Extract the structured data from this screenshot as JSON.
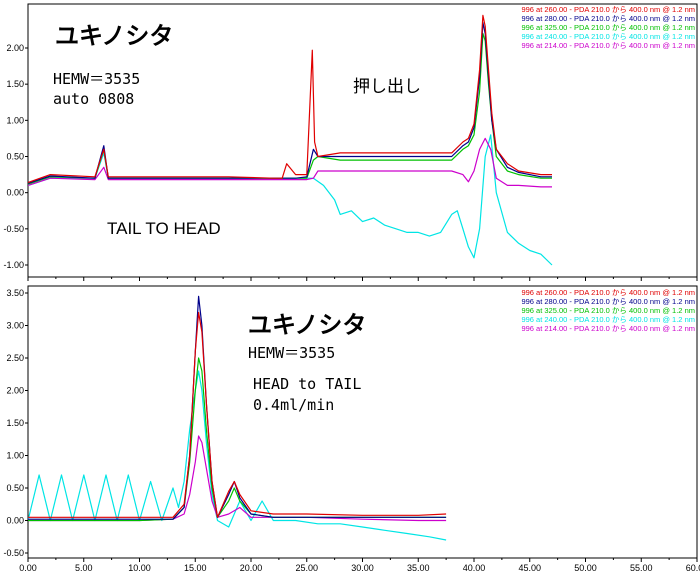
{
  "chart_data": [
    {
      "type": "line",
      "title": "ユキノシタ",
      "annotations": [
        "HEMW＝3535",
        "auto 0808",
        "押し出し",
        "TAIL TO HEAD"
      ],
      "y_ticks": [
        "2.00",
        "1.50",
        "1.00",
        "0.50",
        "0.00",
        "-0.50",
        "-1.00"
      ],
      "ylim": [
        -1.0,
        2.35
      ],
      "xlim": [
        0,
        60
      ],
      "legend": [
        {
          "text": "996  at 260.00 - PDA 210.0 から 400.0 nm @ 1.2 nm",
          "color": "#e00000"
        },
        {
          "text": "996  at 280.00 - PDA 210.0 から 400.0 nm @ 1.2 nm",
          "color": "#00008b"
        },
        {
          "text": "996  at 325.00 - PDA 210.0 から 400.0 nm @ 1.2 nm",
          "color": "#00c000"
        },
        {
          "text": "996  at 240.00 - PDA 210.0 から 400.0 nm @ 1.2 nm",
          "color": "#00e5e5"
        },
        {
          "text": "996  at 214.00 - PDA 210.0 から 400.0 nm @ 1.2 nm",
          "color": "#cc00cc"
        }
      ],
      "legend_position": "top-right",
      "grid": false,
      "series": [
        {
          "color": "#00e5e5",
          "x": [
            0,
            2,
            4,
            6,
            6.8,
            7.2,
            10,
            14,
            18,
            22,
            24,
            25,
            25.6,
            26.5,
            27.5,
            28,
            29,
            30,
            31,
            32,
            33,
            34,
            35,
            36,
            37,
            38,
            38.5,
            39,
            39.5,
            40,
            40.5,
            41,
            41.5,
            42,
            43,
            44,
            45,
            46,
            47
          ],
          "y": [
            0.1,
            0.2,
            0.2,
            0.2,
            0.55,
            0.2,
            0.2,
            0.2,
            0.2,
            0.2,
            0.2,
            0.2,
            0.2,
            0.1,
            -0.1,
            -0.3,
            -0.25,
            -0.4,
            -0.35,
            -0.45,
            -0.5,
            -0.55,
            -0.55,
            -0.6,
            -0.55,
            -0.3,
            -0.25,
            -0.5,
            -0.75,
            -0.9,
            -0.5,
            0.5,
            0.8,
            0.0,
            -0.55,
            -0.7,
            -0.8,
            -0.85,
            -1.0
          ]
        },
        {
          "color": "#cc00cc",
          "x": [
            0,
            2,
            6,
            6.8,
            7.2,
            12,
            18,
            22,
            24,
            25,
            25.6,
            26,
            28,
            30,
            32,
            34,
            36,
            38,
            39,
            39.5,
            40,
            40.5,
            41,
            41.5,
            42,
            43,
            44,
            46,
            47
          ],
          "y": [
            0.1,
            0.2,
            0.18,
            0.35,
            0.18,
            0.18,
            0.18,
            0.18,
            0.18,
            0.18,
            0.2,
            0.3,
            0.3,
            0.3,
            0.3,
            0.3,
            0.3,
            0.3,
            0.25,
            0.15,
            0.3,
            0.6,
            0.75,
            0.6,
            0.2,
            0.1,
            0.1,
            0.08,
            0.08
          ]
        },
        {
          "color": "#00c000",
          "x": [
            0,
            2,
            6,
            6.8,
            7.2,
            12,
            18,
            22,
            24,
            25,
            25.6,
            26,
            28,
            30,
            32,
            34,
            36,
            38,
            39,
            39.5,
            40,
            40.5,
            40.8,
            41,
            41.3,
            41.6,
            42,
            43,
            44,
            46,
            47
          ],
          "y": [
            0.12,
            0.22,
            0.2,
            0.6,
            0.2,
            0.2,
            0.2,
            0.2,
            0.2,
            0.2,
            0.45,
            0.5,
            0.45,
            0.45,
            0.45,
            0.45,
            0.45,
            0.45,
            0.6,
            0.65,
            0.8,
            1.4,
            2.2,
            2.1,
            1.5,
            1.0,
            0.5,
            0.3,
            0.25,
            0.2,
            0.2
          ]
        },
        {
          "color": "#00008b",
          "x": [
            0,
            2,
            6,
            6.8,
            7.2,
            12,
            18,
            22,
            24,
            25,
            25.6,
            26,
            28,
            30,
            32,
            34,
            36,
            38,
            39,
            39.5,
            40,
            40.5,
            40.8,
            41,
            41.3,
            41.6,
            42,
            43,
            44,
            46,
            47
          ],
          "y": [
            0.13,
            0.23,
            0.2,
            0.65,
            0.2,
            0.2,
            0.2,
            0.2,
            0.2,
            0.22,
            0.6,
            0.5,
            0.5,
            0.5,
            0.5,
            0.5,
            0.5,
            0.5,
            0.65,
            0.7,
            0.9,
            1.6,
            2.35,
            2.2,
            1.6,
            1.0,
            0.6,
            0.35,
            0.28,
            0.22,
            0.22
          ]
        },
        {
          "color": "#e00000",
          "x": [
            0,
            2,
            6,
            6.8,
            7.2,
            12,
            18,
            22,
            22.8,
            23.2,
            24,
            25,
            25.5,
            25.7,
            26,
            28,
            30,
            32,
            34,
            36,
            38,
            39,
            39.5,
            40,
            40.5,
            40.8,
            41,
            41.3,
            41.6,
            42,
            43,
            44,
            46,
            47
          ],
          "y": [
            0.14,
            0.25,
            0.22,
            0.6,
            0.22,
            0.22,
            0.22,
            0.2,
            0.2,
            0.4,
            0.25,
            0.25,
            1.97,
            0.7,
            0.5,
            0.55,
            0.55,
            0.55,
            0.55,
            0.55,
            0.55,
            0.7,
            0.75,
            0.95,
            1.7,
            2.45,
            2.3,
            1.7,
            1.1,
            0.6,
            0.4,
            0.3,
            0.25,
            0.25
          ]
        }
      ]
    },
    {
      "type": "line",
      "title": "ユキノシタ",
      "annotations": [
        "HEMW＝3535",
        "HEAD to TAIL",
        "0.4ml/min"
      ],
      "x_ticks": [
        "0.00",
        "5.00",
        "10.00",
        "15.00",
        "20.00",
        "25.00",
        "30.00",
        "35.00",
        "40.00",
        "45.00",
        "50.00",
        "55.00",
        "60.00"
      ],
      "y_ticks": [
        "3.50",
        "3.00",
        "2.50",
        "2.00",
        "1.50",
        "1.00",
        "0.50",
        "0.00",
        "-0.50"
      ],
      "ylim": [
        -0.5,
        3.55
      ],
      "xlim": [
        0,
        60
      ],
      "legend": [
        {
          "text": "996  at 260.00 - PDA 210.0 から 400.0 nm @ 1.2 nm",
          "color": "#e00000"
        },
        {
          "text": "996  at 280.00 - PDA 210.0 から 400.0 nm @ 1.2 nm",
          "color": "#00008b"
        },
        {
          "text": "996  at 325.00 - PDA 210.0 から 400.0 nm @ 1.2 nm",
          "color": "#00c000"
        },
        {
          "text": "996  at 240.00 - PDA 210.0 から 400.0 nm @ 1.2 nm",
          "color": "#00e5e5"
        },
        {
          "text": "996  at 214.00 - PDA 210.0 から 400.0 nm @ 1.2 nm",
          "color": "#cc00cc"
        }
      ],
      "legend_position": "top-right",
      "grid": false,
      "series": [
        {
          "color": "#00e5e5",
          "x": [
            0,
            1,
            2,
            3,
            4,
            5,
            6,
            7,
            8,
            9,
            10,
            11,
            12,
            13,
            13.5,
            14,
            14.5,
            15,
            15.3,
            15.6,
            16,
            16.5,
            17,
            18,
            19,
            20,
            21,
            22,
            24,
            26,
            28,
            30,
            32,
            34,
            36,
            37.5
          ],
          "y": [
            0.0,
            0.7,
            0.0,
            0.7,
            0.0,
            0.7,
            0.0,
            0.7,
            0.0,
            0.7,
            0.0,
            0.6,
            0.0,
            0.5,
            0.2,
            0.6,
            1.4,
            2.0,
            2.3,
            2.0,
            1.2,
            0.4,
            0.0,
            -0.1,
            0.3,
            0.0,
            0.3,
            0.0,
            0.0,
            -0.05,
            -0.05,
            -0.1,
            -0.15,
            -0.2,
            -0.25,
            -0.3
          ]
        },
        {
          "color": "#cc00cc",
          "x": [
            0,
            5,
            10,
            13,
            14,
            14.5,
            15,
            15.3,
            15.6,
            16,
            16.5,
            17,
            18,
            19,
            20,
            22,
            25,
            30,
            35,
            37.5
          ],
          "y": [
            0.0,
            0.0,
            0.0,
            0.02,
            0.1,
            0.4,
            0.9,
            1.3,
            1.2,
            0.8,
            0.3,
            0.05,
            0.1,
            0.2,
            0.05,
            0.05,
            0.05,
            0.02,
            0.0,
            0.0
          ]
        },
        {
          "color": "#00c000",
          "x": [
            0,
            5,
            10,
            13,
            14,
            14.5,
            15,
            15.3,
            15.6,
            16,
            16.5,
            17,
            18,
            18.5,
            19,
            20,
            22,
            25,
            30,
            35,
            37.5
          ],
          "y": [
            0.0,
            0.0,
            0.0,
            0.02,
            0.2,
            0.9,
            2.0,
            2.5,
            2.3,
            1.4,
            0.5,
            0.05,
            0.3,
            0.5,
            0.3,
            0.1,
            0.05,
            0.05,
            0.05,
            0.05,
            0.05
          ]
        },
        {
          "color": "#00008b",
          "x": [
            0,
            5,
            10,
            13,
            14,
            14.5,
            15,
            15.3,
            15.6,
            16,
            16.5,
            17,
            18,
            18.5,
            19,
            20,
            22,
            25,
            30,
            35,
            37.5
          ],
          "y": [
            0.02,
            0.02,
            0.02,
            0.02,
            0.2,
            1.0,
            2.6,
            3.45,
            3.0,
            1.8,
            0.6,
            0.05,
            0.4,
            0.6,
            0.35,
            0.1,
            0.05,
            0.05,
            0.05,
            0.05,
            0.05
          ]
        },
        {
          "color": "#e00000",
          "x": [
            0,
            5,
            10,
            13,
            14,
            14.5,
            15,
            15.3,
            15.6,
            16,
            16.5,
            17,
            18,
            18.5,
            19,
            20,
            22,
            25,
            30,
            35,
            37.5
          ],
          "y": [
            0.05,
            0.05,
            0.05,
            0.05,
            0.25,
            1.0,
            2.6,
            3.2,
            2.9,
            1.8,
            0.6,
            0.05,
            0.45,
            0.6,
            0.4,
            0.15,
            0.1,
            0.1,
            0.08,
            0.08,
            0.1
          ]
        }
      ]
    }
  ]
}
